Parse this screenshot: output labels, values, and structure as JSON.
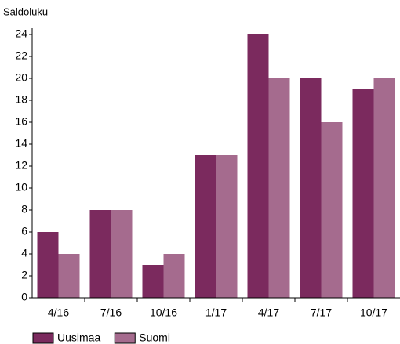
{
  "chart_data": {
    "type": "bar",
    "y_label": "Saldoluku",
    "categories": [
      "4/16",
      "7/16",
      "10/16",
      "1/17",
      "4/17",
      "7/17",
      "10/17"
    ],
    "series": [
      {
        "name": "Uusimaa",
        "color": "#7b2a5e",
        "values": [
          6,
          8,
          3,
          13,
          24,
          20,
          19
        ]
      },
      {
        "name": "Suomi",
        "color": "#a56b8e",
        "values": [
          4,
          8,
          4,
          13,
          20,
          16,
          20
        ]
      }
    ],
    "ylim": [
      0,
      24
    ],
    "yticks": [
      0,
      2,
      4,
      6,
      8,
      10,
      12,
      14,
      16,
      18,
      20,
      22,
      24
    ],
    "grid": false,
    "legend": "bottom"
  }
}
